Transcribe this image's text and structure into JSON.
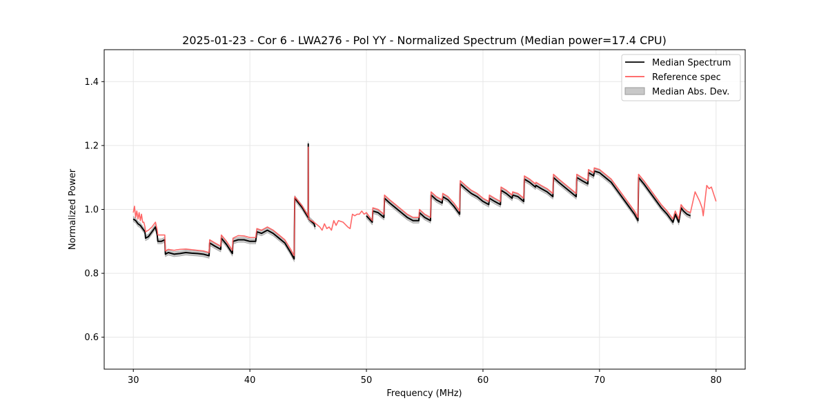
{
  "chart_data": {
    "type": "line",
    "title": "2025-01-23 - Cor 6 - LWA276 - Pol YY - Normalized Spectrum (Median power=17.4 CPU)",
    "xlabel": "Frequency (MHz)",
    "ylabel": "Normalized Power",
    "xlim": [
      27.5,
      82.5
    ],
    "ylim": [
      0.5,
      1.5
    ],
    "xticks": [
      30,
      40,
      50,
      60,
      70,
      80
    ],
    "yticks": [
      0.6,
      0.8,
      1.0,
      1.2,
      1.4
    ],
    "xtick_labels": [
      "30",
      "40",
      "50",
      "60",
      "70",
      "80"
    ],
    "ytick_labels": [
      "0.6",
      "0.8",
      "1.0",
      "1.2",
      "1.4"
    ],
    "grid": true,
    "legend_position": "top-right",
    "legend": [
      "Median Spectrum",
      "Reference spec",
      "Median Abs. Dev."
    ],
    "colors": {
      "median": "#000000",
      "reference": "#ff5a5a",
      "mad_fill": "#c8c8c8",
      "mad_edge": "#9a9a9a",
      "grid": "#e6e6e6"
    },
    "series": [
      {
        "name": "Median Spectrum",
        "x": [
          30.0,
          30.2,
          30.4,
          30.6,
          30.8,
          31.0,
          31.05,
          31.3,
          31.6,
          31.9,
          32.05,
          32.1,
          32.4,
          32.7,
          32.75,
          33.0,
          33.5,
          34.0,
          34.5,
          35.0,
          35.5,
          36.0,
          36.5,
          36.55,
          37.0,
          37.5,
          37.55,
          38.0,
          38.5,
          38.55,
          39.0,
          39.5,
          40.0,
          40.5,
          40.6,
          41.0,
          41.5,
          42.0,
          42.5,
          43.0,
          43.5,
          43.8,
          43.85,
          44.5,
          45.0,
          45.01,
          45.02,
          45.05,
          45.2,
          45.5,
          45.6
        ],
        "values": [
          0.97,
          0.965,
          0.955,
          0.95,
          0.94,
          0.93,
          0.91,
          0.915,
          0.93,
          0.945,
          0.92,
          0.9,
          0.9,
          0.905,
          0.86,
          0.865,
          0.86,
          0.862,
          0.865,
          0.863,
          0.862,
          0.86,
          0.855,
          0.895,
          0.885,
          0.875,
          0.91,
          0.89,
          0.862,
          0.9,
          0.905,
          0.905,
          0.9,
          0.9,
          0.93,
          0.925,
          0.935,
          0.925,
          0.91,
          0.895,
          0.865,
          0.845,
          1.035,
          1.005,
          0.975,
          1.205,
          1.0,
          0.97,
          0.965,
          0.955,
          0.945
        ]
      },
      {
        "name": "Median Spectrum (segment 2)",
        "x": [
          50.0,
          50.5,
          50.55,
          51.0,
          51.5,
          51.55,
          52.0,
          52.5,
          53.0,
          53.5,
          54.0,
          54.5,
          54.55,
          55.0,
          55.5,
          55.55,
          56.0,
          56.5,
          56.55,
          57.0,
          57.5,
          58.0,
          58.05,
          58.5,
          59.0,
          59.5,
          60.0,
          60.5,
          60.55,
          61.0,
          61.5,
          61.55,
          62.0,
          62.5,
          62.55,
          63.0,
          63.5,
          63.55,
          64.0,
          64.5,
          64.55,
          65.0,
          65.5,
          66.0,
          66.05,
          66.5,
          67.0,
          67.5,
          68.0,
          68.05,
          68.5,
          69.0,
          69.05,
          69.5,
          69.55,
          70.0,
          70.5,
          71.0,
          71.5,
          72.0,
          72.5,
          73.0,
          73.3,
          73.35,
          73.8,
          74.3,
          74.8,
          75.3,
          75.8,
          76.3,
          76.5,
          76.8,
          77.0,
          77.2,
          77.5,
          77.8
        ],
        "values": [
          0.98,
          0.96,
          0.995,
          0.99,
          0.975,
          1.035,
          1.02,
          1.005,
          0.99,
          0.975,
          0.965,
          0.965,
          0.99,
          0.975,
          0.965,
          1.045,
          1.03,
          1.02,
          1.04,
          1.03,
          1.01,
          0.985,
          1.08,
          1.065,
          1.05,
          1.04,
          1.025,
          1.015,
          1.035,
          1.025,
          1.015,
          1.06,
          1.05,
          1.035,
          1.045,
          1.04,
          1.025,
          1.095,
          1.085,
          1.07,
          1.075,
          1.065,
          1.055,
          1.04,
          1.1,
          1.085,
          1.07,
          1.055,
          1.04,
          1.1,
          1.09,
          1.08,
          1.115,
          1.105,
          1.12,
          1.115,
          1.1,
          1.085,
          1.06,
          1.035,
          1.01,
          0.985,
          0.965,
          1.1,
          1.08,
          1.055,
          1.03,
          1.005,
          0.985,
          0.96,
          0.985,
          0.96,
          1.005,
          0.995,
          0.985,
          0.98
        ]
      },
      {
        "name": "Reference spec",
        "x": [
          30.0,
          30.1,
          30.2,
          30.3,
          30.4,
          30.5,
          30.6,
          30.7,
          30.8,
          30.9,
          31.0,
          31.05,
          31.3,
          31.6,
          31.9,
          32.05,
          32.1,
          32.4,
          32.7,
          32.75,
          33.0,
          33.5,
          34.0,
          34.5,
          35.0,
          35.5,
          36.0,
          36.5,
          36.55,
          37.0,
          37.5,
          37.55,
          38.0,
          38.5,
          38.55,
          39.0,
          39.5,
          40.0,
          40.5,
          40.6,
          41.0,
          41.5,
          42.0,
          42.5,
          43.0,
          43.5,
          43.8,
          43.85,
          44.5,
          45.0,
          45.01,
          45.02,
          45.05,
          45.5,
          46.0,
          46.2,
          46.4,
          46.6,
          46.8,
          47.0,
          47.2,
          47.4,
          47.6,
          48.0,
          48.4,
          48.6,
          48.8,
          49.0,
          49.2,
          49.4,
          49.6,
          49.8,
          50.0,
          50.5,
          50.55,
          51.0,
          51.5,
          51.55,
          52.0,
          52.5,
          53.0,
          53.5,
          54.0,
          54.5,
          54.55,
          55.0,
          55.5,
          55.55,
          56.0,
          56.5,
          56.55,
          57.0,
          57.5,
          58.0,
          58.05,
          58.5,
          59.0,
          59.5,
          60.0,
          60.5,
          60.55,
          61.0,
          61.5,
          61.55,
          62.0,
          62.5,
          62.55,
          63.0,
          63.5,
          63.55,
          64.0,
          64.5,
          64.55,
          65.0,
          65.5,
          66.0,
          66.05,
          66.5,
          67.0,
          67.5,
          68.0,
          68.05,
          68.5,
          69.0,
          69.05,
          69.5,
          69.55,
          70.0,
          70.5,
          71.0,
          71.5,
          72.0,
          72.5,
          73.0,
          73.3,
          73.35,
          73.8,
          74.3,
          74.8,
          75.3,
          75.8,
          76.3,
          76.5,
          76.8,
          77.0,
          77.2,
          77.5,
          77.8,
          78.2,
          78.6,
          78.8,
          78.9,
          79.2,
          79.4,
          79.6,
          80.0
        ],
        "values": [
          0.99,
          1.01,
          0.975,
          0.995,
          0.97,
          0.99,
          0.965,
          0.985,
          0.96,
          0.96,
          0.945,
          0.93,
          0.935,
          0.945,
          0.96,
          0.935,
          0.92,
          0.92,
          0.92,
          0.87,
          0.875,
          0.872,
          0.875,
          0.876,
          0.874,
          0.872,
          0.87,
          0.865,
          0.905,
          0.895,
          0.885,
          0.92,
          0.9,
          0.872,
          0.91,
          0.918,
          0.917,
          0.912,
          0.912,
          0.94,
          0.935,
          0.945,
          0.935,
          0.92,
          0.905,
          0.875,
          0.855,
          1.04,
          1.01,
          0.98,
          1.195,
          1.0,
          0.97,
          0.96,
          0.945,
          0.935,
          0.955,
          0.94,
          0.945,
          0.935,
          0.965,
          0.95,
          0.965,
          0.96,
          0.945,
          0.94,
          0.985,
          0.98,
          0.985,
          0.985,
          0.995,
          0.985,
          0.99,
          0.965,
          1.005,
          1.0,
          0.985,
          1.045,
          1.03,
          1.015,
          1.0,
          0.985,
          0.975,
          0.975,
          1.0,
          0.985,
          0.975,
          1.055,
          1.04,
          1.03,
          1.05,
          1.04,
          1.02,
          0.995,
          1.09,
          1.075,
          1.06,
          1.05,
          1.035,
          1.025,
          1.045,
          1.035,
          1.025,
          1.07,
          1.06,
          1.045,
          1.055,
          1.05,
          1.035,
          1.105,
          1.095,
          1.08,
          1.085,
          1.075,
          1.065,
          1.05,
          1.11,
          1.095,
          1.08,
          1.065,
          1.05,
          1.11,
          1.1,
          1.09,
          1.125,
          1.115,
          1.13,
          1.125,
          1.11,
          1.095,
          1.07,
          1.045,
          1.02,
          0.995,
          0.975,
          1.11,
          1.09,
          1.065,
          1.04,
          1.015,
          0.995,
          0.97,
          0.995,
          0.97,
          1.015,
          1.005,
          0.995,
          0.99,
          1.055,
          1.025,
          1.005,
          0.98,
          1.075,
          1.065,
          1.07,
          1.025
        ]
      }
    ],
    "mad_halfwidth": 0.008,
    "legend_sample_offsets": {
      "median": 0,
      "reference": 0
    }
  }
}
